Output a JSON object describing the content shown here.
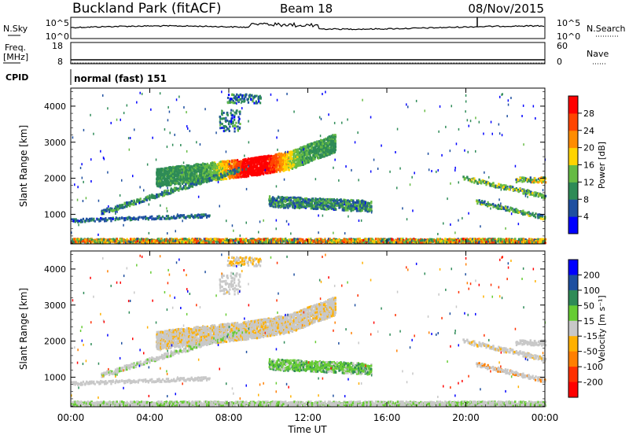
{
  "header": {
    "station": "Buckland Park (fitACF)",
    "beam": "Beam 18",
    "date": "08/Nov/2015"
  },
  "noise_panel": {
    "left_label": "N.Sky",
    "right_label": "N.Search",
    "left_ticks": [
      "10^5",
      "10^0"
    ],
    "right_ticks": [
      "10^5",
      "10^0"
    ]
  },
  "freq_panel": {
    "left_label_line1": "Freq.",
    "left_label_line2": "[MHz]",
    "right_label": "Nave",
    "left_ticks": [
      "18",
      "8"
    ],
    "right_ticks": [
      "60",
      "0"
    ]
  },
  "cpid": {
    "label": "CPID",
    "value": "normal (fast) 151"
  },
  "colors": {
    "power_scale": [
      "#0000ff",
      "#1e4fa0",
      "#2e8b57",
      "#66bb44",
      "#ffd400",
      "#ff8c00",
      "#ff4500",
      "#ff0000"
    ],
    "velocity_scale": [
      "#0000ff",
      "#1e4fa0",
      "#2e8b57",
      "#66cc33",
      "#c8c8c8",
      "#ffb000",
      "#ff7f00",
      "#ff3000",
      "#ff0000"
    ]
  },
  "chart_data": [
    {
      "type": "heatmap",
      "name": "power",
      "ylabel": "Slant Range [km]",
      "ylim": [
        180,
        4500
      ],
      "y_ticks": [
        "1000",
        "2000",
        "3000",
        "4000"
      ],
      "colorbar_label": "Power [dB]",
      "colorbar_ticks": [
        "4",
        "8",
        "12",
        "16",
        "20",
        "24",
        "28"
      ],
      "colorbar_range": [
        0,
        30
      ]
    },
    {
      "type": "heatmap",
      "name": "velocity",
      "ylabel": "Slant Range [km]",
      "ylim": [
        180,
        4500
      ],
      "y_ticks": [
        "1000",
        "2000",
        "3000",
        "4000"
      ],
      "colorbar_label": "Velocity [m s⁻¹]",
      "colorbar_ticks": [
        "200",
        "100",
        "50",
        "15",
        "-15",
        "-50",
        "-100",
        "-200"
      ]
    }
  ],
  "x_axis": {
    "ticks": [
      "00:00",
      "04:00",
      "08:00",
      "12:00",
      "16:00",
      "20:00",
      "00:00"
    ],
    "label": "Time UT",
    "range_hours": [
      0,
      24
    ]
  }
}
